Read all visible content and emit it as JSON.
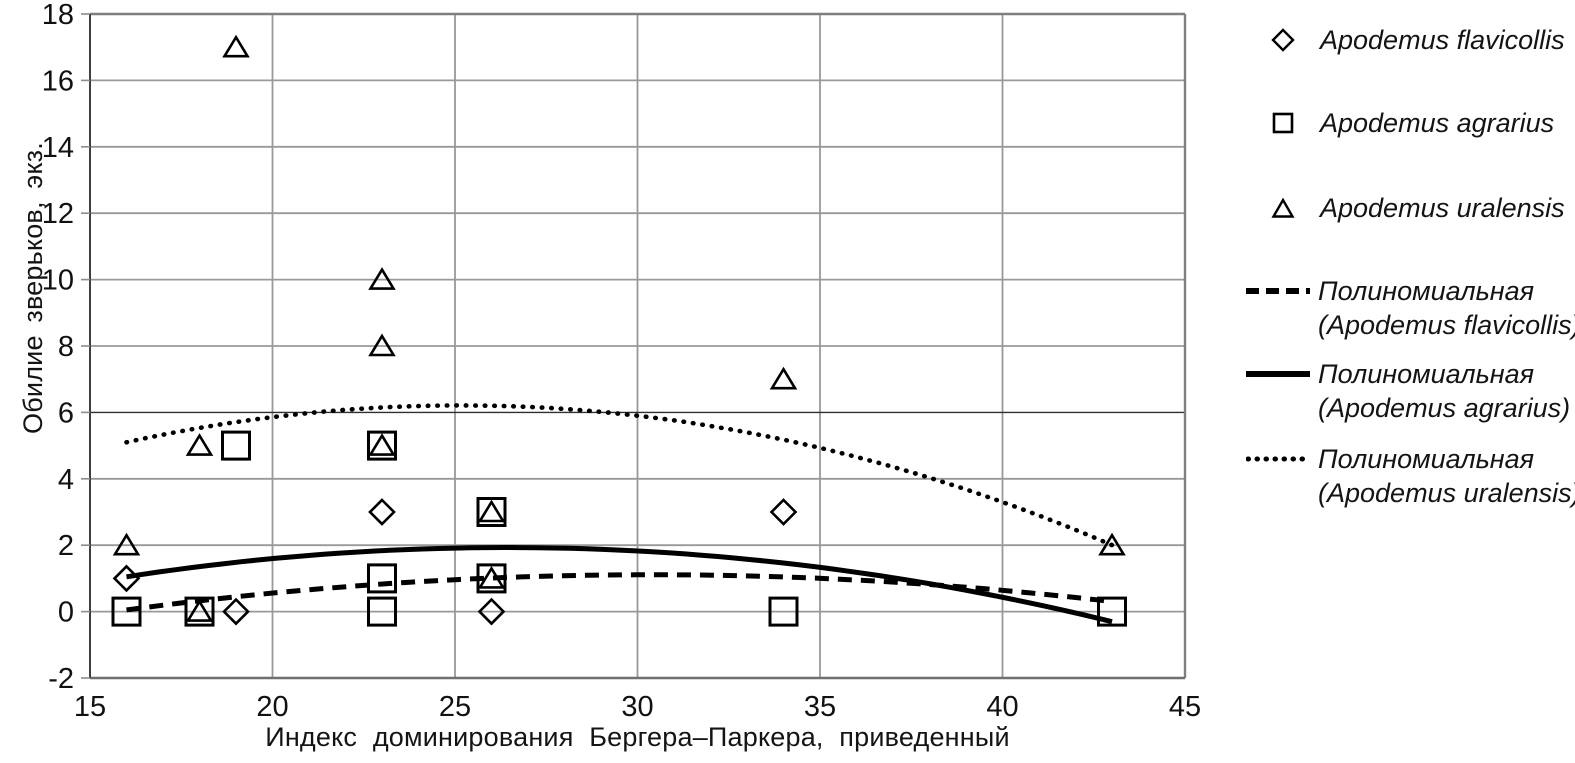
{
  "chart_data": {
    "type": "scatter",
    "title": "",
    "xlabel": "Индекс доминирования Бергера–Паркера, приведенный",
    "ylabel": "Обилие зверьков, экз.",
    "xlim": [
      15,
      45
    ],
    "ylim": [
      -2,
      18
    ],
    "x_ticks": [
      15,
      20,
      25,
      30,
      35,
      40,
      45
    ],
    "y_ticks": [
      -2,
      0,
      2,
      4,
      6,
      8,
      10,
      12,
      14,
      16,
      18
    ],
    "grid": true,
    "dark_gridline_y": 6,
    "legend_position": "right",
    "series": [
      {
        "name": "Apodemus flavicollis",
        "marker": "diamond",
        "points": [
          [
            16,
            1
          ],
          [
            19,
            0
          ],
          [
            23,
            3
          ],
          [
            26,
            0
          ],
          [
            34,
            3
          ]
        ]
      },
      {
        "name": "Apodemus agrarius",
        "marker": "square",
        "points": [
          [
            16,
            0
          ],
          [
            18,
            0
          ],
          [
            19,
            5
          ],
          [
            23,
            5
          ],
          [
            23,
            1
          ],
          [
            23,
            0
          ],
          [
            26,
            3
          ],
          [
            26,
            1
          ],
          [
            34,
            0
          ],
          [
            43,
            0
          ]
        ]
      },
      {
        "name": "Apodemus uralensis",
        "marker": "triangle",
        "points": [
          [
            16,
            2
          ],
          [
            18,
            5
          ],
          [
            18,
            0
          ],
          [
            19,
            17
          ],
          [
            23,
            10
          ],
          [
            23,
            8
          ],
          [
            23,
            5
          ],
          [
            26,
            3
          ],
          [
            26,
            1
          ],
          [
            34,
            7
          ],
          [
            43,
            2
          ]
        ]
      }
    ],
    "trendlines": [
      {
        "name": "Полиномиальная (Apodemus flavicollis)",
        "style": "dashed",
        "poly": [
          -0.005107,
          0.3106,
          -3.612
        ],
        "x_range": [
          16,
          43
        ]
      },
      {
        "name": "Полиномиальная (Apodemus agrarius)",
        "style": "solid",
        "poly": [
          -0.00812,
          0.429,
          -3.736
        ],
        "x_range": [
          16,
          43
        ]
      },
      {
        "name": "Полиномиальная (Apodemus uralensis)",
        "style": "dotted",
        "poly": [
          -0.01322,
          0.6653,
          -2.16
        ],
        "x_range": [
          16,
          43
        ]
      }
    ]
  },
  "legend": {
    "entries": [
      {
        "label": "Apodemus flavicollis",
        "marker": "diamond"
      },
      {
        "label": "Apodemus agrarius",
        "marker": "square"
      },
      {
        "label": "Apodemus uralensis",
        "marker": "triangle"
      },
      {
        "line1": "Полиномиальная",
        "line2": "(Apodemus flavicollis)",
        "style": "dashed"
      },
      {
        "line1": "Полиномиальная",
        "line2": "(Apodemus agrarius)",
        "style": "solid"
      },
      {
        "line1": "Полиномиальная",
        "line2": "(Apodemus uralensis)",
        "style": "dotted"
      }
    ]
  },
  "colors": {
    "marker": "#000000",
    "trendline": "#000000",
    "grid": "#999999",
    "dark_grid": "#2f2f2f",
    "frame": "#7f7f7f",
    "axis": "#3f3f3f",
    "text": "#111111"
  }
}
